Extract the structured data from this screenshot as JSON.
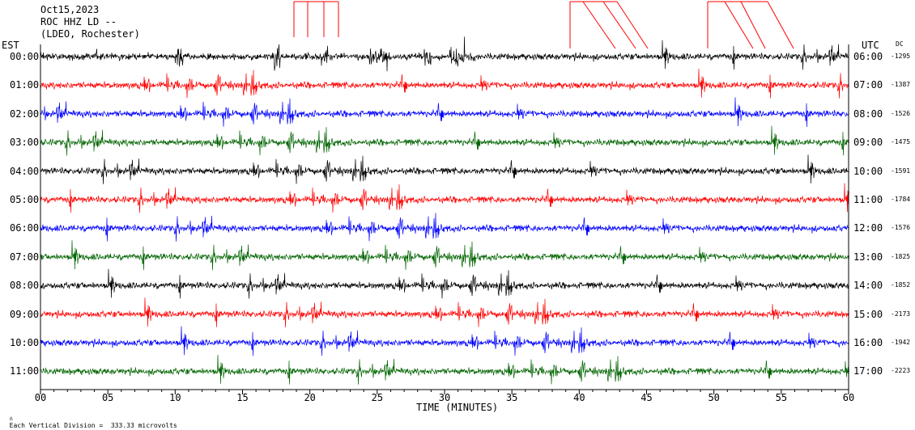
{
  "header": {
    "date": "Oct15,2023",
    "station": "ROC HHZ LD --",
    "network": "(LDEO, Rochester)"
  },
  "labels": {
    "left_tz": "EST",
    "right_tz": "UTC",
    "dc": "DC",
    "xlabel": "TIME (MINUTES)",
    "footer": "Each Vertical Division =  333.33 microvolts"
  },
  "chart_data": {
    "type": "line",
    "title": "ROC HHZ LD --",
    "xlabel": "TIME (MINUTES)",
    "xlim": [
      0,
      60
    ],
    "xticks": [
      "00",
      "05",
      "10",
      "15",
      "20",
      "25",
      "30",
      "35",
      "40",
      "45",
      "50",
      "55",
      "60"
    ],
    "rows": [
      {
        "est": "00:00",
        "utc": "06:00",
        "dc": "-1295",
        "color": "#000000"
      },
      {
        "est": "01:00",
        "utc": "07:00",
        "dc": "-1387",
        "color": "#ff0000"
      },
      {
        "est": "02:00",
        "utc": "08:00",
        "dc": "-1526",
        "color": "#0000ff"
      },
      {
        "est": "03:00",
        "utc": "09:00",
        "dc": "-1475",
        "color": "#006400"
      },
      {
        "est": "04:00",
        "utc": "10:00",
        "dc": "-1591",
        "color": "#000000"
      },
      {
        "est": "05:00",
        "utc": "11:00",
        "dc": "-1784",
        "color": "#ff0000"
      },
      {
        "est": "06:00",
        "utc": "12:00",
        "dc": "-1576",
        "color": "#0000ff"
      },
      {
        "est": "07:00",
        "utc": "13:00",
        "dc": "-1825",
        "color": "#006400"
      },
      {
        "est": "08:00",
        "utc": "14:00",
        "dc": "-1852",
        "color": "#000000"
      },
      {
        "est": "09:00",
        "utc": "15:00",
        "dc": "-2173",
        "color": "#ff0000"
      },
      {
        "est": "10:00",
        "utc": "16:00",
        "dc": "-1942",
        "color": "#0000ff"
      },
      {
        "est": "11:00",
        "utc": "17:00",
        "dc": "-2223",
        "color": "#006400"
      }
    ],
    "series_colors": [
      "#000000",
      "#ff0000",
      "#0000ff",
      "#006400"
    ],
    "clip_marker_color": "#ff0000",
    "grid": false
  }
}
